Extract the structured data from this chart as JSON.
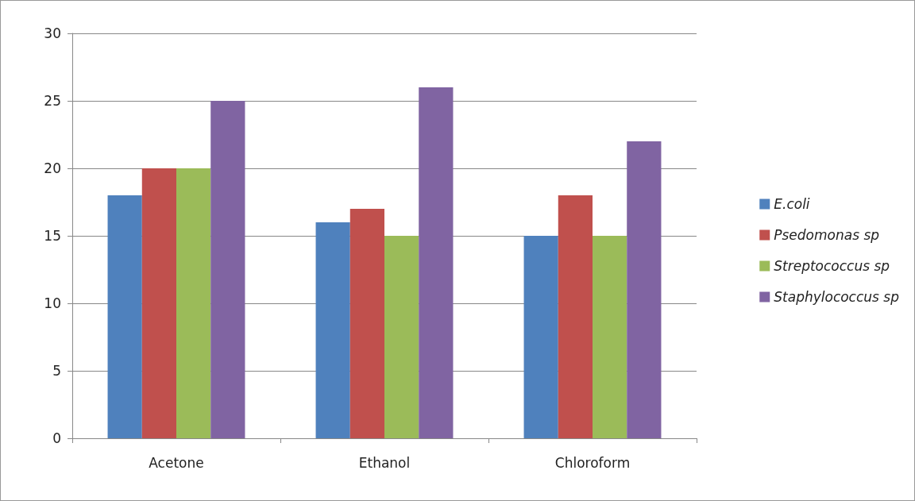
{
  "chart_data": {
    "type": "bar",
    "categories": [
      "Acetone",
      "Ethanol",
      "Chloroform"
    ],
    "series": [
      {
        "name": "E.coli",
        "color": "#4f81bd",
        "values": [
          18,
          16,
          15
        ]
      },
      {
        "name": "Psedomonas sp",
        "color": "#c0504d",
        "values": [
          20,
          17,
          18
        ]
      },
      {
        "name": "Streptococcus sp",
        "color": "#9bbb59",
        "values": [
          20,
          15,
          15
        ]
      },
      {
        "name": "Staphylococcus sp",
        "color": "#8064a2",
        "values": [
          25,
          26,
          22
        ]
      }
    ],
    "ylim": [
      0,
      30
    ],
    "yticks": [
      0,
      5,
      10,
      15,
      20,
      25,
      30
    ],
    "grid": "y",
    "legend": "right"
  }
}
